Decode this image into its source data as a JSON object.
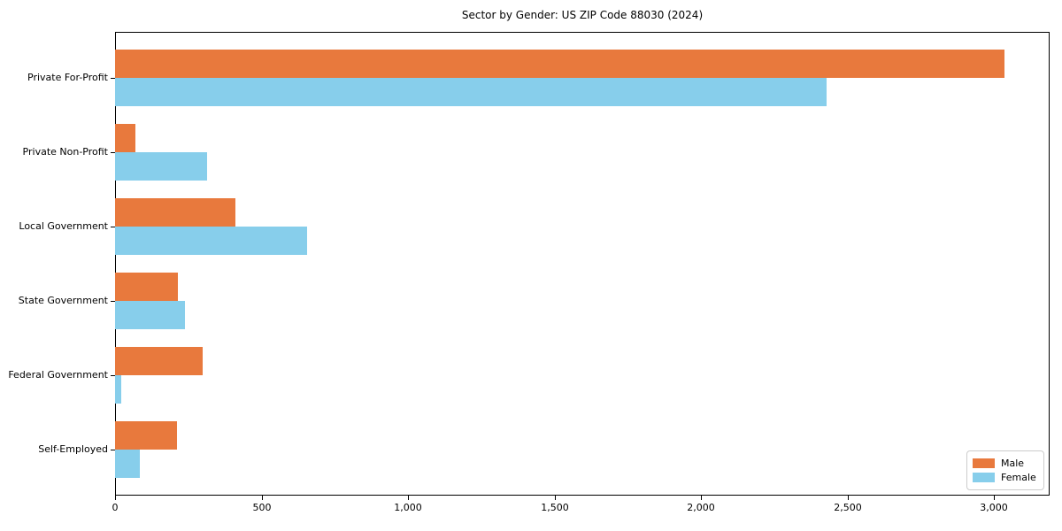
{
  "window": {
    "title": "Sector by Gender: US ZIP Code 88030 (2024)"
  },
  "chart_data": {
    "type": "bar",
    "orientation": "horizontal",
    "title": "Sector by Gender: US ZIP Code 88030 (2024)",
    "categories": [
      "Private For-Profit",
      "Private Non-Profit",
      "Local Government",
      "State Government",
      "Federal Government",
      "Self-Employed"
    ],
    "series": [
      {
        "name": "Male",
        "color": "#E8793D",
        "values": [
          3035,
          70,
          410,
          215,
          300,
          210
        ]
      },
      {
        "name": "Female",
        "color": "#87CEEB",
        "values": [
          2430,
          315,
          655,
          240,
          20,
          85
        ]
      }
    ],
    "xlabel": "",
    "ylabel": "",
    "xlim": [
      0,
      3190
    ],
    "xticks": [
      {
        "value": 0,
        "label": "0"
      },
      {
        "value": 500,
        "label": "500"
      },
      {
        "value": 1000,
        "label": "1,000"
      },
      {
        "value": 1500,
        "label": "1,500"
      },
      {
        "value": 2000,
        "label": "2,000"
      },
      {
        "value": 2500,
        "label": "2,500"
      },
      {
        "value": 3000,
        "label": "3,000"
      }
    ],
    "grid": false,
    "legend": {
      "position": "lower right",
      "entries": [
        "Male",
        "Female"
      ]
    }
  }
}
